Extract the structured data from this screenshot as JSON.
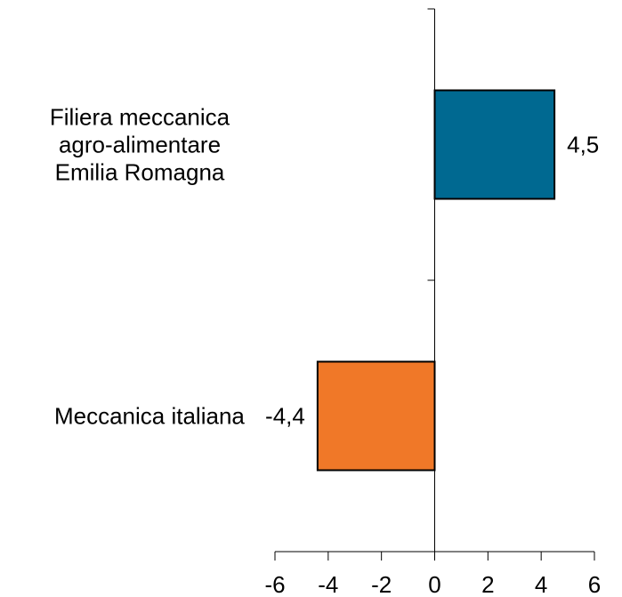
{
  "chart_data": {
    "type": "bar",
    "orientation": "horizontal",
    "title": "",
    "xlabel": "",
    "ylabel": "",
    "categories": [
      [
        "Filiera meccanica",
        "agro-alimentare",
        "Emilia Romagna"
      ],
      [
        "Meccanica italiana"
      ]
    ],
    "values": [
      4.5,
      -4.4
    ],
    "value_labels": [
      "4,5",
      "-4,4"
    ],
    "colors": [
      "#006991",
      "#F07828"
    ],
    "xlim": [
      -6,
      6
    ],
    "xticks": [
      -6,
      -4,
      -2,
      0,
      2,
      4,
      6
    ],
    "xtick_labels": [
      "-6",
      "-4",
      "-2",
      "0",
      "2",
      "4",
      "6"
    ],
    "grid": false,
    "legend": "none"
  }
}
